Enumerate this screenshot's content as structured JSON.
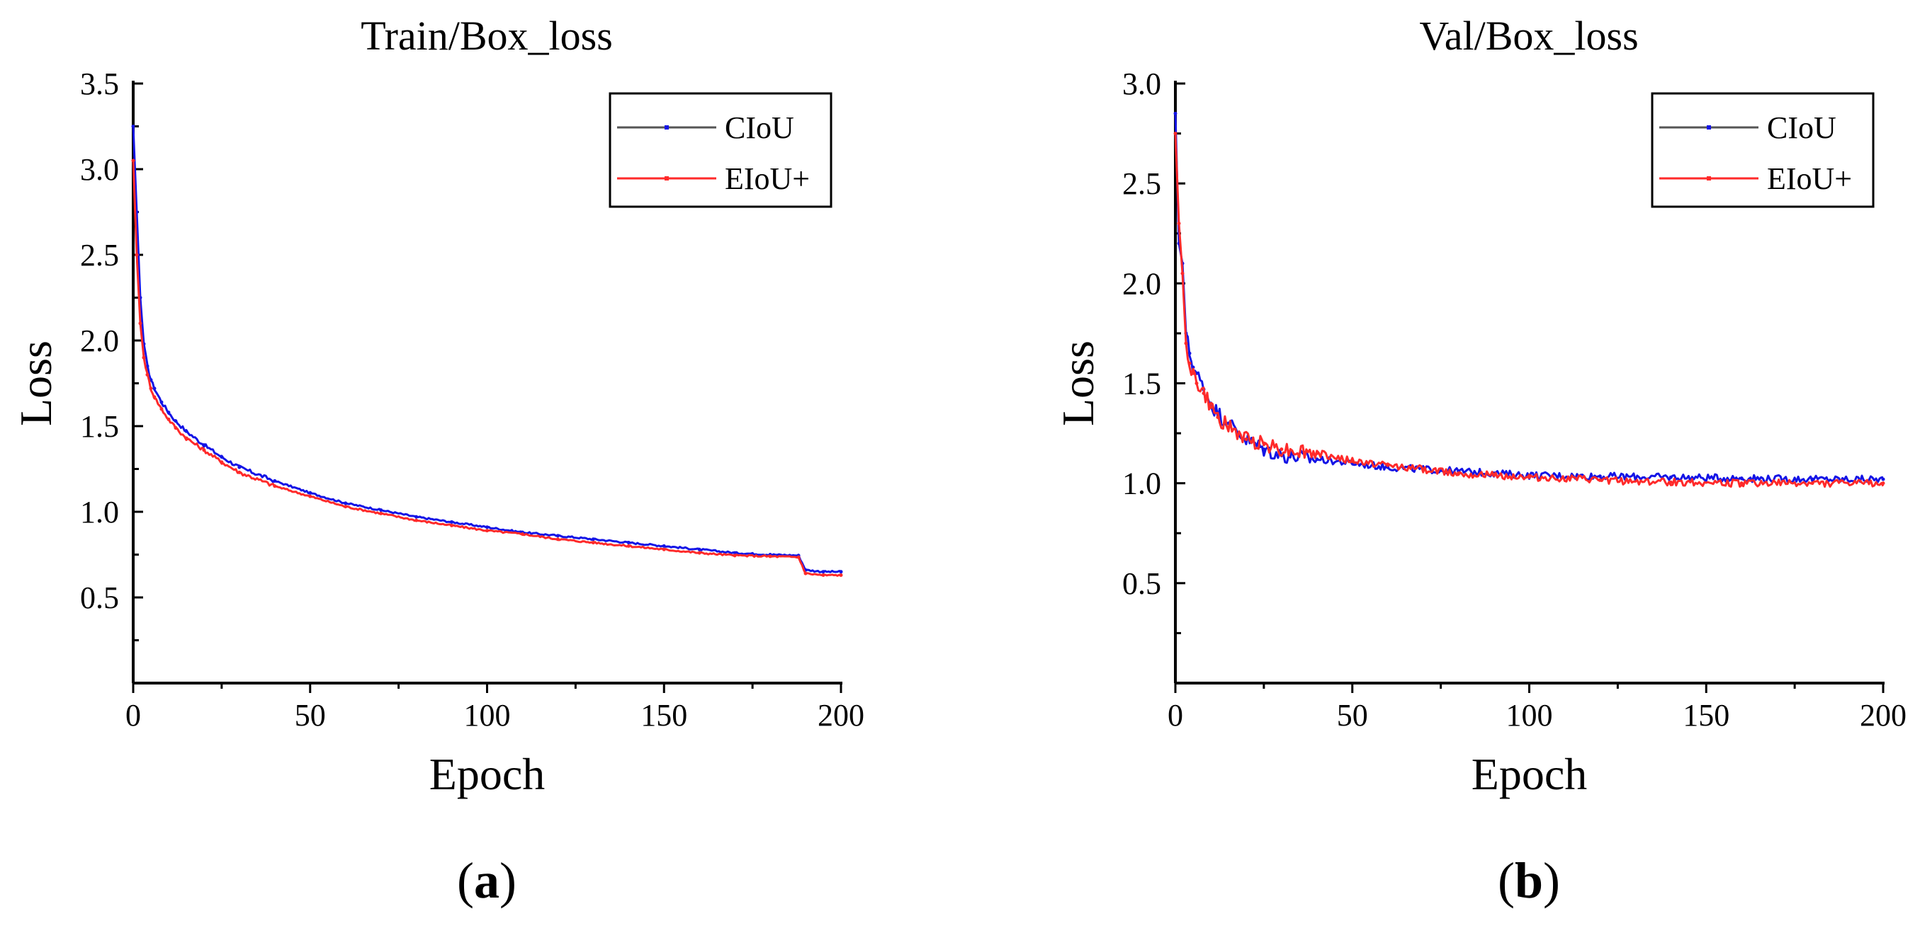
{
  "colors": {
    "ciou": "#1414e6",
    "eiou": "#ff2a2a",
    "axis": "#000000"
  },
  "chart_data": [
    {
      "type": "line",
      "panel": "a",
      "caption": {
        "open": "(",
        "letter": "a",
        "close": ")"
      },
      "title": "Train/Box_loss",
      "xlabel": "Epoch",
      "ylabel": "Loss",
      "xlim": [
        0,
        200
      ],
      "ylim": [
        0,
        3.5
      ],
      "xticks": [
        0,
        50,
        100,
        150,
        200
      ],
      "yticks": [
        0.5,
        1.0,
        1.5,
        2.0,
        2.5,
        3.0,
        3.5
      ],
      "ytick_labels": [
        "0.5",
        "1.0",
        "1.5",
        "2.0",
        "2.5",
        "3.0",
        "3.5"
      ],
      "legend_position": "top-right",
      "noise": 0.005,
      "series": [
        {
          "name": "CIoU",
          "color": "#1414e6",
          "x": [
            0,
            1,
            2,
            3,
            4,
            5,
            6,
            8,
            10,
            12,
            15,
            20,
            25,
            30,
            40,
            50,
            60,
            70,
            80,
            90,
            100,
            110,
            120,
            130,
            140,
            150,
            160,
            170,
            180,
            188,
            190,
            195,
            200
          ],
          "values": [
            3.25,
            2.75,
            2.25,
            1.98,
            1.85,
            1.77,
            1.72,
            1.64,
            1.58,
            1.53,
            1.47,
            1.39,
            1.32,
            1.26,
            1.18,
            1.11,
            1.05,
            1.01,
            0.97,
            0.94,
            0.91,
            0.88,
            0.86,
            0.84,
            0.82,
            0.8,
            0.78,
            0.76,
            0.75,
            0.745,
            0.66,
            0.65,
            0.65
          ]
        },
        {
          "name": "EIoU+",
          "color": "#ff2a2a",
          "x": [
            0,
            1,
            2,
            3,
            4,
            5,
            6,
            8,
            10,
            12,
            15,
            20,
            25,
            30,
            40,
            50,
            60,
            70,
            80,
            90,
            100,
            110,
            120,
            130,
            140,
            150,
            160,
            170,
            180,
            188,
            190,
            195,
            200
          ],
          "values": [
            3.05,
            2.5,
            2.1,
            1.9,
            1.8,
            1.72,
            1.67,
            1.6,
            1.54,
            1.49,
            1.43,
            1.36,
            1.29,
            1.23,
            1.15,
            1.09,
            1.03,
            0.99,
            0.95,
            0.92,
            0.89,
            0.87,
            0.84,
            0.82,
            0.8,
            0.78,
            0.76,
            0.745,
            0.74,
            0.735,
            0.64,
            0.63,
            0.63
          ]
        }
      ]
    },
    {
      "type": "line",
      "panel": "b",
      "caption": {
        "open": "(",
        "letter": "b",
        "close": ")"
      },
      "title": "Val/Box_loss",
      "xlabel": "Epoch",
      "ylabel": "Loss",
      "xlim": [
        0,
        200
      ],
      "ylim": [
        0,
        3.0
      ],
      "xticks": [
        0,
        50,
        100,
        150,
        200
      ],
      "yticks": [
        0.5,
        1.0,
        1.5,
        2.0,
        2.5,
        3.0
      ],
      "ytick_labels": [
        "0.5",
        "1.0",
        "1.5",
        "2.0",
        "2.5",
        "3.0"
      ],
      "legend_position": "top-right",
      "noise": 0.018,
      "series": [
        {
          "name": "CIoU",
          "color": "#1414e6",
          "x": [
            0,
            1,
            2,
            3,
            4,
            5,
            6,
            8,
            10,
            12,
            15,
            20,
            25,
            30,
            40,
            50,
            60,
            70,
            80,
            90,
            100,
            120,
            140,
            160,
            180,
            200
          ],
          "values": [
            2.85,
            2.2,
            2.1,
            1.75,
            1.65,
            1.58,
            1.55,
            1.47,
            1.4,
            1.35,
            1.3,
            1.22,
            1.17,
            1.14,
            1.12,
            1.1,
            1.08,
            1.07,
            1.06,
            1.05,
            1.04,
            1.035,
            1.03,
            1.025,
            1.02,
            1.02
          ]
        },
        {
          "name": "EIoU+",
          "color": "#ff2a2a",
          "x": [
            0,
            1,
            2,
            3,
            4,
            5,
            6,
            8,
            10,
            12,
            15,
            20,
            25,
            30,
            40,
            50,
            60,
            70,
            80,
            90,
            100,
            120,
            140,
            160,
            180,
            200
          ],
          "values": [
            2.75,
            2.3,
            2.05,
            1.7,
            1.6,
            1.55,
            1.5,
            1.45,
            1.38,
            1.33,
            1.28,
            1.22,
            1.2,
            1.17,
            1.15,
            1.11,
            1.09,
            1.07,
            1.05,
            1.04,
            1.03,
            1.015,
            1.005,
            1.0,
            1.0,
            1.0
          ]
        }
      ]
    }
  ]
}
